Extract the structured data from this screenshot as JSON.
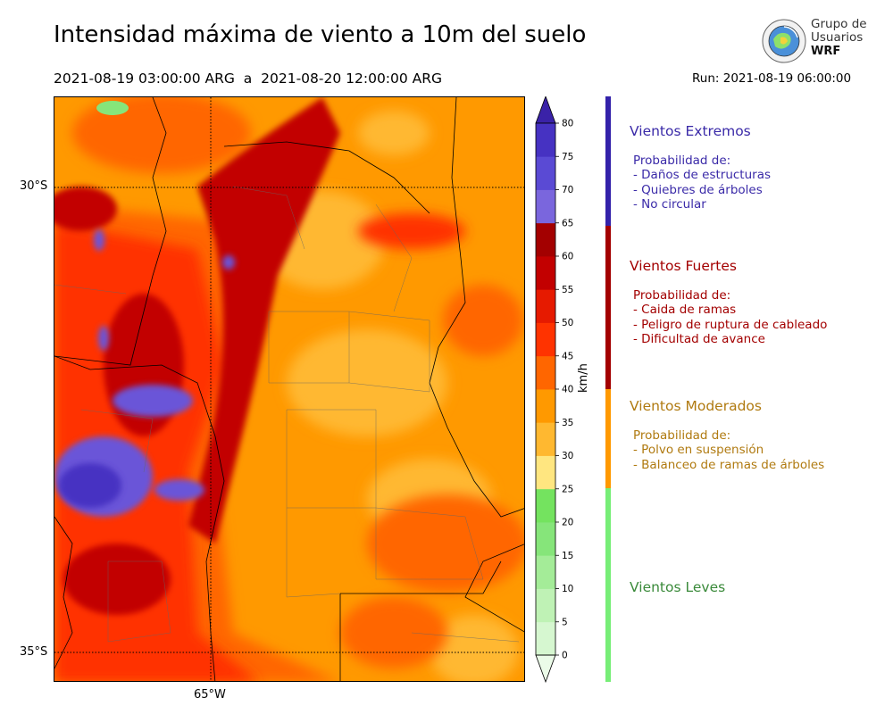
{
  "header": {
    "title": "Intensidad máxima de viento a 10m del suelo",
    "period": "2021-08-19 03:00:00 ARG  a  2021-08-20 12:00:00 ARG",
    "run": "Run: 2021-08-19 06:00:00"
  },
  "logo": {
    "line1": "Grupo de",
    "line2": "Usuarios",
    "line3": "WRF"
  },
  "map": {
    "lat_labels": [
      "30°S",
      "35°S"
    ],
    "lon_labels": [
      "65°W"
    ]
  },
  "colorbar": {
    "unit": "km/h",
    "ticks": [
      "0",
      "5",
      "10",
      "15",
      "20",
      "25",
      "30",
      "35",
      "40",
      "45",
      "50",
      "55",
      "60",
      "65",
      "70",
      "75",
      "80"
    ],
    "colors": [
      "#ebfbe8",
      "#d6f7d0",
      "#bff2b5",
      "#a4ec98",
      "#86e57a",
      "#74e35f",
      "#ffe680",
      "#ffb830",
      "#ff9900",
      "#ff6600",
      "#ff3300",
      "#e61a00",
      "#c20000",
      "#a30000",
      "#7a66dd",
      "#5a4ad4",
      "#4632c2"
    ],
    "extend_colors": {
      "min": "#ffffff",
      "max": "#3a22a8"
    }
  },
  "categories": [
    {
      "title": "Vientos Extremos",
      "color": "#3a2aa8",
      "bar_color": "#3322aa",
      "lines": [
        "Probabilidad de:",
        "- Daños de estructuras",
        "- Quiebres de árboles",
        "- No circular"
      ]
    },
    {
      "title": "Vientos Fuertes",
      "color": "#a30000",
      "bar_color": "#a30000",
      "lines": [
        "Probabilidad de:",
        "- Caida de ramas",
        "- Peligro de ruptura de cableado",
        "- Dificultad de avance"
      ]
    },
    {
      "title": "Vientos Moderados",
      "color": "#b07a10",
      "bar_color": "#ff9900",
      "lines": [
        "Probabilidad de:",
        "- Polvo en suspensión",
        "- Balanceo de ramas de árboles"
      ]
    },
    {
      "title": "Vientos Leves",
      "color": "#3a8a3a",
      "bar_color": "#77ee77",
      "lines": []
    }
  ]
}
